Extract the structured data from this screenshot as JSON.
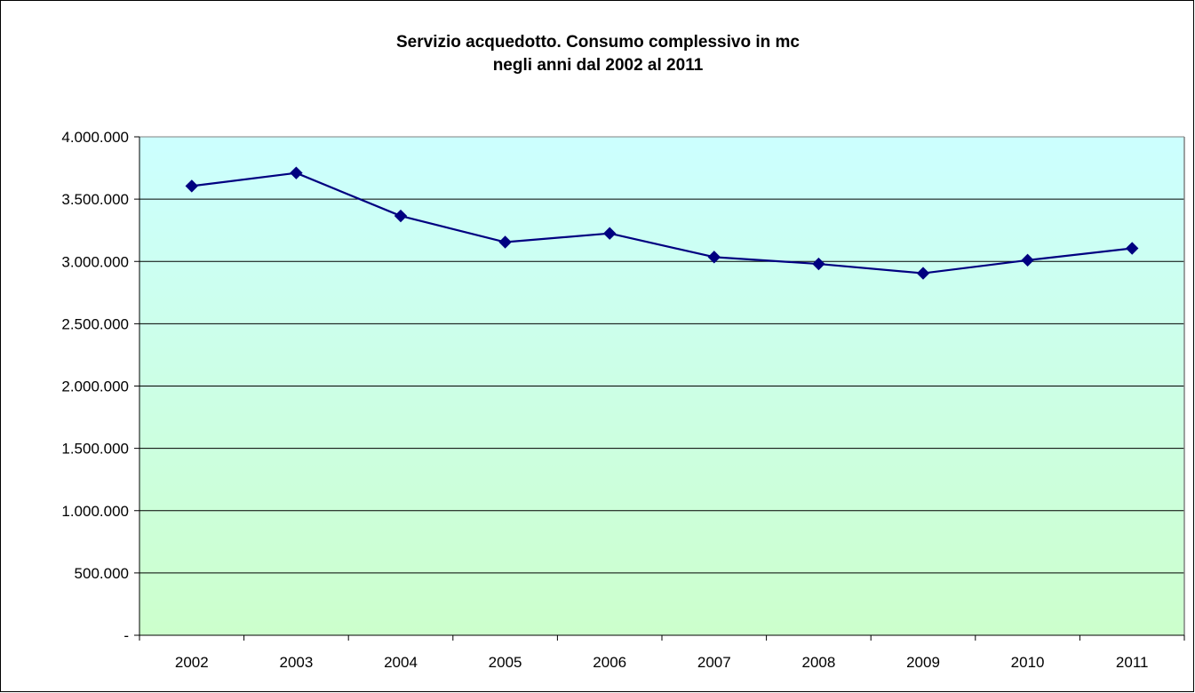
{
  "chart_data": {
    "type": "line",
    "title_lines": [
      "Servizio acquedotto. Consumo complessivo in mc",
      "negli anni dal 2002 al 2011"
    ],
    "categories": [
      "2002",
      "2003",
      "2004",
      "2005",
      "2006",
      "2007",
      "2008",
      "2009",
      "2010",
      "2011"
    ],
    "series": [
      {
        "values": [
          3605000,
          3710000,
          3365000,
          3155000,
          3225000,
          3035000,
          2980000,
          2905000,
          3010000,
          3105000
        ]
      }
    ],
    "ylim": [
      0,
      4000000
    ],
    "y_ticks": [
      0,
      500000,
      1000000,
      1500000,
      2000000,
      2500000,
      3000000,
      3500000,
      4000000
    ],
    "y_tick_labels": [
      "-",
      "500.000",
      "1.000.000",
      "1.500.000",
      "2.000.000",
      "2.500.000",
      "3.000.000",
      "3.500.000",
      "4.000.000"
    ],
    "grid": true,
    "legend": "none",
    "colors": {
      "line": "#000080",
      "marker": "#000080",
      "plot_bg_top": "#ccffff",
      "plot_bg_bottom": "#ccffcc",
      "grid": "#000000"
    }
  }
}
